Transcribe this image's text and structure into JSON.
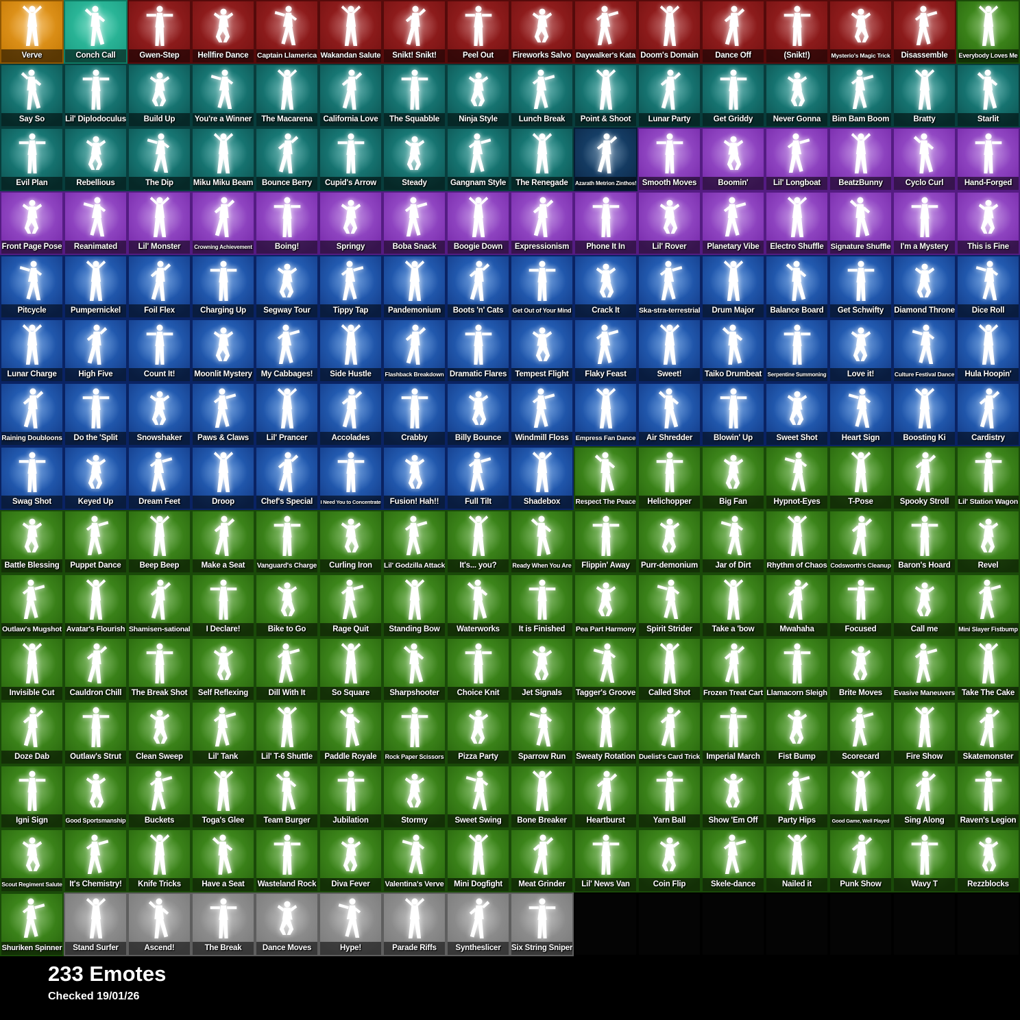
{
  "grid": {
    "columns": 16,
    "total_emotes": 233
  },
  "footer": {
    "count": "233 Emotes",
    "checked": "Checked 19/01/26"
  },
  "rarity_colors": {
    "legendary": {
      "center": "#f2a62c",
      "edge": "#c87c07",
      "border": "#8f5703"
    },
    "teal": {
      "center": "#38cbaa",
      "edge": "#1da085",
      "border": "#0e7a63"
    },
    "marvel": {
      "center": "#a32525",
      "edge": "#791313",
      "border": "#550b0b"
    },
    "icon": {
      "center": "#20938f",
      "edge": "#0e5957",
      "border": "#083d3c"
    },
    "dark": {
      "center": "#1d4f7c",
      "edge": "#0d2b4d",
      "border": "#071d35"
    },
    "epic": {
      "center": "#a760d8",
      "edge": "#7a2dad",
      "border": "#541c82"
    },
    "rare": {
      "center": "#2f75d2",
      "edge": "#153f8d",
      "border": "#0a2363"
    },
    "uncommon": {
      "center": "#4d9f26",
      "edge": "#2b6a0f",
      "border": "#1a4a09"
    },
    "common": {
      "center": "#9e9e9e",
      "edge": "#7c7c7c",
      "border": "#5e5e5e"
    }
  },
  "emotes": [
    {
      "name": "Verve",
      "rarity": "legendary"
    },
    {
      "name": "Conch Call",
      "rarity": "teal"
    },
    {
      "name": "Gwen-Step",
      "rarity": "marvel"
    },
    {
      "name": "Hellfire Dance",
      "rarity": "marvel"
    },
    {
      "name": "Captain Llamerica",
      "rarity": "marvel"
    },
    {
      "name": "Wakandan Salute",
      "rarity": "marvel"
    },
    {
      "name": "Snikt! Snikt!",
      "rarity": "marvel"
    },
    {
      "name": "Peel Out",
      "rarity": "marvel"
    },
    {
      "name": "Fireworks Salvo",
      "rarity": "marvel"
    },
    {
      "name": "Daywalker's Kata",
      "rarity": "marvel"
    },
    {
      "name": "Doom's Domain",
      "rarity": "marvel"
    },
    {
      "name": "Dance Off",
      "rarity": "marvel"
    },
    {
      "name": "(Snikt!)",
      "rarity": "marvel"
    },
    {
      "name": "Mysterio's Magic Trick",
      "rarity": "marvel"
    },
    {
      "name": "Disassemble",
      "rarity": "marvel"
    },
    {
      "name": "Everybody Loves Me",
      "rarity": "uncommon"
    },
    {
      "name": "Say So",
      "rarity": "icon"
    },
    {
      "name": "Lil' Diplodoculus",
      "rarity": "icon"
    },
    {
      "name": "Build Up",
      "rarity": "icon"
    },
    {
      "name": "You're a Winner",
      "rarity": "icon"
    },
    {
      "name": "The Macarena",
      "rarity": "icon"
    },
    {
      "name": "California Love",
      "rarity": "icon"
    },
    {
      "name": "The Squabble",
      "rarity": "icon"
    },
    {
      "name": "Ninja Style",
      "rarity": "icon"
    },
    {
      "name": "Lunch Break",
      "rarity": "icon"
    },
    {
      "name": "Point & Shoot",
      "rarity": "icon"
    },
    {
      "name": "Lunar Party",
      "rarity": "icon"
    },
    {
      "name": "Get Griddy",
      "rarity": "icon"
    },
    {
      "name": "Never Gonna",
      "rarity": "icon"
    },
    {
      "name": "Bim Bam Boom",
      "rarity": "icon"
    },
    {
      "name": "Bratty",
      "rarity": "icon"
    },
    {
      "name": "Starlit",
      "rarity": "icon"
    },
    {
      "name": "Evil Plan",
      "rarity": "icon"
    },
    {
      "name": "Rebellious",
      "rarity": "icon"
    },
    {
      "name": "The Dip",
      "rarity": "icon"
    },
    {
      "name": "Miku Miku Beam",
      "rarity": "icon"
    },
    {
      "name": "Bounce Berry",
      "rarity": "icon"
    },
    {
      "name": "Cupid's Arrow",
      "rarity": "icon"
    },
    {
      "name": "Steady",
      "rarity": "icon"
    },
    {
      "name": "Gangnam Style",
      "rarity": "icon"
    },
    {
      "name": "The Renegade",
      "rarity": "icon"
    },
    {
      "name": "Azarath Metrion Zinthos!",
      "rarity": "dark"
    },
    {
      "name": "Smooth Moves",
      "rarity": "epic"
    },
    {
      "name": "Boomin'",
      "rarity": "epic"
    },
    {
      "name": "Lil' Longboat",
      "rarity": "epic"
    },
    {
      "name": "BeatzBunny",
      "rarity": "epic"
    },
    {
      "name": "Cyclo Curl",
      "rarity": "epic"
    },
    {
      "name": "Hand-Forged",
      "rarity": "epic"
    },
    {
      "name": "Front Page Pose",
      "rarity": "epic"
    },
    {
      "name": "Reanimated",
      "rarity": "epic"
    },
    {
      "name": "Lil' Monster",
      "rarity": "epic"
    },
    {
      "name": "Crowning Achievement",
      "rarity": "epic"
    },
    {
      "name": "Boing!",
      "rarity": "epic"
    },
    {
      "name": "Springy",
      "rarity": "epic"
    },
    {
      "name": "Boba Snack",
      "rarity": "epic"
    },
    {
      "name": "Boogie Down",
      "rarity": "epic"
    },
    {
      "name": "Expressionism",
      "rarity": "epic"
    },
    {
      "name": "Phone It In",
      "rarity": "epic"
    },
    {
      "name": "Lil' Rover",
      "rarity": "epic"
    },
    {
      "name": "Planetary Vibe",
      "rarity": "epic"
    },
    {
      "name": "Electro Shuffle",
      "rarity": "epic"
    },
    {
      "name": "Signature Shuffle",
      "rarity": "epic"
    },
    {
      "name": "I'm a Mystery",
      "rarity": "epic"
    },
    {
      "name": "This is Fine",
      "rarity": "epic"
    },
    {
      "name": "Pitcycle",
      "rarity": "rare"
    },
    {
      "name": "Pumpernickel",
      "rarity": "rare"
    },
    {
      "name": "Foil Flex",
      "rarity": "rare"
    },
    {
      "name": "Charging Up",
      "rarity": "rare"
    },
    {
      "name": "Segway Tour",
      "rarity": "rare"
    },
    {
      "name": "Tippy Tap",
      "rarity": "rare"
    },
    {
      "name": "Pandemonium",
      "rarity": "rare"
    },
    {
      "name": "Boots 'n' Cats",
      "rarity": "rare"
    },
    {
      "name": "Get Out of Your Mind",
      "rarity": "rare"
    },
    {
      "name": "Crack It",
      "rarity": "rare"
    },
    {
      "name": "Ska-stra-terrestrial",
      "rarity": "rare"
    },
    {
      "name": "Drum Major",
      "rarity": "rare"
    },
    {
      "name": "Balance Board",
      "rarity": "rare"
    },
    {
      "name": "Get Schwifty",
      "rarity": "rare"
    },
    {
      "name": "Diamond Throne",
      "rarity": "rare"
    },
    {
      "name": "Dice Roll",
      "rarity": "rare"
    },
    {
      "name": "Lunar Charge",
      "rarity": "rare"
    },
    {
      "name": "High Five",
      "rarity": "rare"
    },
    {
      "name": "Count It!",
      "rarity": "rare"
    },
    {
      "name": "Moonlit Mystery",
      "rarity": "rare"
    },
    {
      "name": "My Cabbages!",
      "rarity": "rare"
    },
    {
      "name": "Side Hustle",
      "rarity": "rare"
    },
    {
      "name": "Flashback Breakdown",
      "rarity": "rare"
    },
    {
      "name": "Dramatic Flares",
      "rarity": "rare"
    },
    {
      "name": "Tempest Flight",
      "rarity": "rare"
    },
    {
      "name": "Flaky Feast",
      "rarity": "rare"
    },
    {
      "name": "Sweet!",
      "rarity": "rare"
    },
    {
      "name": "Taiko Drumbeat",
      "rarity": "rare"
    },
    {
      "name": "Serpentine Summoning",
      "rarity": "rare"
    },
    {
      "name": "Love it!",
      "rarity": "rare"
    },
    {
      "name": "Culture Festival Dance",
      "rarity": "rare"
    },
    {
      "name": "Hula Hoopin'",
      "rarity": "rare"
    },
    {
      "name": "Raining Doubloons",
      "rarity": "rare"
    },
    {
      "name": "Do the 'Split",
      "rarity": "rare"
    },
    {
      "name": "Snowshaker",
      "rarity": "rare"
    },
    {
      "name": "Paws & Claws",
      "rarity": "rare"
    },
    {
      "name": "Lil' Prancer",
      "rarity": "rare"
    },
    {
      "name": "Accolades",
      "rarity": "rare"
    },
    {
      "name": "Crabby",
      "rarity": "rare"
    },
    {
      "name": "Billy Bounce",
      "rarity": "rare"
    },
    {
      "name": "Windmill Floss",
      "rarity": "rare"
    },
    {
      "name": "Empress Fan Dance",
      "rarity": "rare"
    },
    {
      "name": "Air Shredder",
      "rarity": "rare"
    },
    {
      "name": "Blowin' Up",
      "rarity": "rare"
    },
    {
      "name": "Sweet Shot",
      "rarity": "rare"
    },
    {
      "name": "Heart Sign",
      "rarity": "rare"
    },
    {
      "name": "Boosting Ki",
      "rarity": "rare"
    },
    {
      "name": "Cardistry",
      "rarity": "rare"
    },
    {
      "name": "Swag Shot",
      "rarity": "rare"
    },
    {
      "name": "Keyed Up",
      "rarity": "rare"
    },
    {
      "name": "Dream Feet",
      "rarity": "rare"
    },
    {
      "name": "Droop",
      "rarity": "rare"
    },
    {
      "name": "Chef's Special",
      "rarity": "rare"
    },
    {
      "name": "I Need You to Concentrate",
      "rarity": "rare"
    },
    {
      "name": "Fusion! Hah!!",
      "rarity": "rare"
    },
    {
      "name": "Full Tilt",
      "rarity": "rare"
    },
    {
      "name": "Shadebox",
      "rarity": "rare"
    },
    {
      "name": "Respect The Peace",
      "rarity": "uncommon"
    },
    {
      "name": "Helichopper",
      "rarity": "uncommon"
    },
    {
      "name": "Big Fan",
      "rarity": "uncommon"
    },
    {
      "name": "Hypnot-Eyes",
      "rarity": "uncommon"
    },
    {
      "name": "T-Pose",
      "rarity": "uncommon"
    },
    {
      "name": "Spooky Stroll",
      "rarity": "uncommon"
    },
    {
      "name": "Lil' Station Wagon",
      "rarity": "uncommon"
    },
    {
      "name": "Battle Blessing",
      "rarity": "uncommon"
    },
    {
      "name": "Puppet Dance",
      "rarity": "uncommon"
    },
    {
      "name": "Beep Beep",
      "rarity": "uncommon"
    },
    {
      "name": "Make a Seat",
      "rarity": "uncommon"
    },
    {
      "name": "Vanguard's Charge",
      "rarity": "uncommon"
    },
    {
      "name": "Curling Iron",
      "rarity": "uncommon"
    },
    {
      "name": "Lil' Godzilla Attack",
      "rarity": "uncommon"
    },
    {
      "name": "It's... you?",
      "rarity": "uncommon"
    },
    {
      "name": "Ready When You Are",
      "rarity": "uncommon"
    },
    {
      "name": "Flippin' Away",
      "rarity": "uncommon"
    },
    {
      "name": "Purr-demonium",
      "rarity": "uncommon"
    },
    {
      "name": "Jar of Dirt",
      "rarity": "uncommon"
    },
    {
      "name": "Rhythm of Chaos",
      "rarity": "uncommon"
    },
    {
      "name": "Codsworth's Cleanup",
      "rarity": "uncommon"
    },
    {
      "name": "Baron's Hoard",
      "rarity": "uncommon"
    },
    {
      "name": "Revel",
      "rarity": "uncommon"
    },
    {
      "name": "Outlaw's Mugshot",
      "rarity": "uncommon"
    },
    {
      "name": "Avatar's Flourish",
      "rarity": "uncommon"
    },
    {
      "name": "Shamisen-sational",
      "rarity": "uncommon"
    },
    {
      "name": "I Declare!",
      "rarity": "uncommon"
    },
    {
      "name": "Bike to Go",
      "rarity": "uncommon"
    },
    {
      "name": "Rage Quit",
      "rarity": "uncommon"
    },
    {
      "name": "Standing Bow",
      "rarity": "uncommon"
    },
    {
      "name": "Waterworks",
      "rarity": "uncommon"
    },
    {
      "name": "It is Finished",
      "rarity": "uncommon"
    },
    {
      "name": "Pea Part Harmony",
      "rarity": "uncommon"
    },
    {
      "name": "Spirit Strider",
      "rarity": "uncommon"
    },
    {
      "name": "Take a 'bow",
      "rarity": "uncommon"
    },
    {
      "name": "Mwahaha",
      "rarity": "uncommon"
    },
    {
      "name": "Focused",
      "rarity": "uncommon"
    },
    {
      "name": "Call me",
      "rarity": "uncommon"
    },
    {
      "name": "Mini Slayer Fistbump",
      "rarity": "uncommon"
    },
    {
      "name": "Invisible Cut",
      "rarity": "uncommon"
    },
    {
      "name": "Cauldron Chill",
      "rarity": "uncommon"
    },
    {
      "name": "The Break Shot",
      "rarity": "uncommon"
    },
    {
      "name": "Self Reflexing",
      "rarity": "uncommon"
    },
    {
      "name": "Dill With It",
      "rarity": "uncommon"
    },
    {
      "name": "So Square",
      "rarity": "uncommon"
    },
    {
      "name": "Sharpshooter",
      "rarity": "uncommon"
    },
    {
      "name": "Choice Knit",
      "rarity": "uncommon"
    },
    {
      "name": "Jet Signals",
      "rarity": "uncommon"
    },
    {
      "name": "Tagger's Groove",
      "rarity": "uncommon"
    },
    {
      "name": "Called Shot",
      "rarity": "uncommon"
    },
    {
      "name": "Frozen Treat Cart",
      "rarity": "uncommon"
    },
    {
      "name": "Llamacorn Sleigh",
      "rarity": "uncommon"
    },
    {
      "name": "Brite Moves",
      "rarity": "uncommon"
    },
    {
      "name": "Evasive Maneuvers",
      "rarity": "uncommon"
    },
    {
      "name": "Take The Cake",
      "rarity": "uncommon"
    },
    {
      "name": "Doze Dab",
      "rarity": "uncommon"
    },
    {
      "name": "Outlaw's Strut",
      "rarity": "uncommon"
    },
    {
      "name": "Clean Sweep",
      "rarity": "uncommon"
    },
    {
      "name": "Lil' Tank",
      "rarity": "uncommon"
    },
    {
      "name": "Lil' T-6 Shuttle",
      "rarity": "uncommon"
    },
    {
      "name": "Paddle Royale",
      "rarity": "uncommon"
    },
    {
      "name": "Rock Paper Scissors",
      "rarity": "uncommon"
    },
    {
      "name": "Pizza Party",
      "rarity": "uncommon"
    },
    {
      "name": "Sparrow Run",
      "rarity": "uncommon"
    },
    {
      "name": "Sweaty Rotation",
      "rarity": "uncommon"
    },
    {
      "name": "Duelist's Card Trick",
      "rarity": "uncommon"
    },
    {
      "name": "Imperial March",
      "rarity": "uncommon"
    },
    {
      "name": "Fist Bump",
      "rarity": "uncommon"
    },
    {
      "name": "Scorecard",
      "rarity": "uncommon"
    },
    {
      "name": "Fire Show",
      "rarity": "uncommon"
    },
    {
      "name": "Skatemonster",
      "rarity": "uncommon"
    },
    {
      "name": "Igni Sign",
      "rarity": "uncommon"
    },
    {
      "name": "Good Sportsmanship",
      "rarity": "uncommon"
    },
    {
      "name": "Buckets",
      "rarity": "uncommon"
    },
    {
      "name": "Toga's Glee",
      "rarity": "uncommon"
    },
    {
      "name": "Team Burger",
      "rarity": "uncommon"
    },
    {
      "name": "Jubilation",
      "rarity": "uncommon"
    },
    {
      "name": "Stormy",
      "rarity": "uncommon"
    },
    {
      "name": "Sweet Swing",
      "rarity": "uncommon"
    },
    {
      "name": "Bone Breaker",
      "rarity": "uncommon"
    },
    {
      "name": "Heartburst",
      "rarity": "uncommon"
    },
    {
      "name": "Yarn Ball",
      "rarity": "uncommon"
    },
    {
      "name": "Show 'Em Off",
      "rarity": "uncommon"
    },
    {
      "name": "Party Hips",
      "rarity": "uncommon"
    },
    {
      "name": "Good Game, Well Played",
      "rarity": "uncommon"
    },
    {
      "name": "Sing Along",
      "rarity": "uncommon"
    },
    {
      "name": "Raven's Legion",
      "rarity": "uncommon"
    },
    {
      "name": "Scout Regiment Salute",
      "rarity": "uncommon"
    },
    {
      "name": "It's Chemistry!",
      "rarity": "uncommon"
    },
    {
      "name": "Knife Tricks",
      "rarity": "uncommon"
    },
    {
      "name": "Have a Seat",
      "rarity": "uncommon"
    },
    {
      "name": "Wasteland Rock",
      "rarity": "uncommon"
    },
    {
      "name": "Diva Fever",
      "rarity": "uncommon"
    },
    {
      "name": "Valentina's Verve",
      "rarity": "uncommon"
    },
    {
      "name": "Mini Dogfight",
      "rarity": "uncommon"
    },
    {
      "name": "Meat Grinder",
      "rarity": "uncommon"
    },
    {
      "name": "Lil' News Van",
      "rarity": "uncommon"
    },
    {
      "name": "Coin Flip",
      "rarity": "uncommon"
    },
    {
      "name": "Skele-dance",
      "rarity": "uncommon"
    },
    {
      "name": "Nailed it",
      "rarity": "uncommon"
    },
    {
      "name": "Punk Show",
      "rarity": "uncommon"
    },
    {
      "name": "Wavy T",
      "rarity": "uncommon"
    },
    {
      "name": "Rezzblocks",
      "rarity": "uncommon"
    },
    {
      "name": "Shuriken Spinner",
      "rarity": "uncommon"
    },
    {
      "name": "Stand Surfer",
      "rarity": "common"
    },
    {
      "name": "Ascend!",
      "rarity": "common"
    },
    {
      "name": "The Break",
      "rarity": "common"
    },
    {
      "name": "Dance Moves",
      "rarity": "common"
    },
    {
      "name": "Hype!",
      "rarity": "common"
    },
    {
      "name": "Parade Riffs",
      "rarity": "common"
    },
    {
      "name": "Syntheslicer",
      "rarity": "common"
    },
    {
      "name": "Six String Sniper",
      "rarity": "common"
    }
  ]
}
